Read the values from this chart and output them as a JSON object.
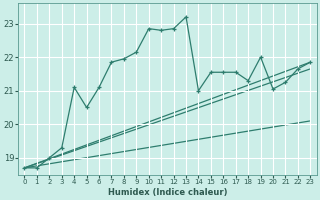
{
  "title": "",
  "xlabel": "Humidex (Indice chaleur)",
  "bg_color": "#cceee8",
  "grid_color": "#ffffff",
  "line_color": "#2e7d6e",
  "xlim": [
    -0.5,
    23.5
  ],
  "ylim": [
    18.5,
    23.6
  ],
  "yticks": [
    19,
    20,
    21,
    22,
    23
  ],
  "xticks": [
    0,
    1,
    2,
    3,
    4,
    5,
    6,
    7,
    8,
    9,
    10,
    11,
    12,
    13,
    14,
    15,
    16,
    17,
    18,
    19,
    20,
    21,
    22,
    23
  ],
  "series1_x": [
    0,
    1,
    2,
    3,
    4,
    5,
    6,
    7,
    8,
    9,
    10,
    11,
    12,
    13,
    14,
    15,
    16,
    17,
    18,
    19,
    20,
    21,
    22,
    23
  ],
  "series1_y": [
    18.7,
    18.7,
    19.0,
    19.3,
    21.1,
    20.5,
    21.1,
    21.85,
    21.95,
    22.15,
    22.85,
    22.8,
    22.85,
    23.2,
    21.0,
    21.55,
    21.55,
    21.55,
    21.3,
    22.0,
    21.05,
    21.25,
    21.65,
    21.85
  ],
  "trend1_x": [
    0,
    23
  ],
  "trend1_y": [
    18.7,
    21.85
  ],
  "trend2_x": [
    0,
    23
  ],
  "trend2_y": [
    18.7,
    21.65
  ],
  "trend3_x": [
    0,
    23
  ],
  "trend3_y": [
    18.7,
    20.1
  ]
}
